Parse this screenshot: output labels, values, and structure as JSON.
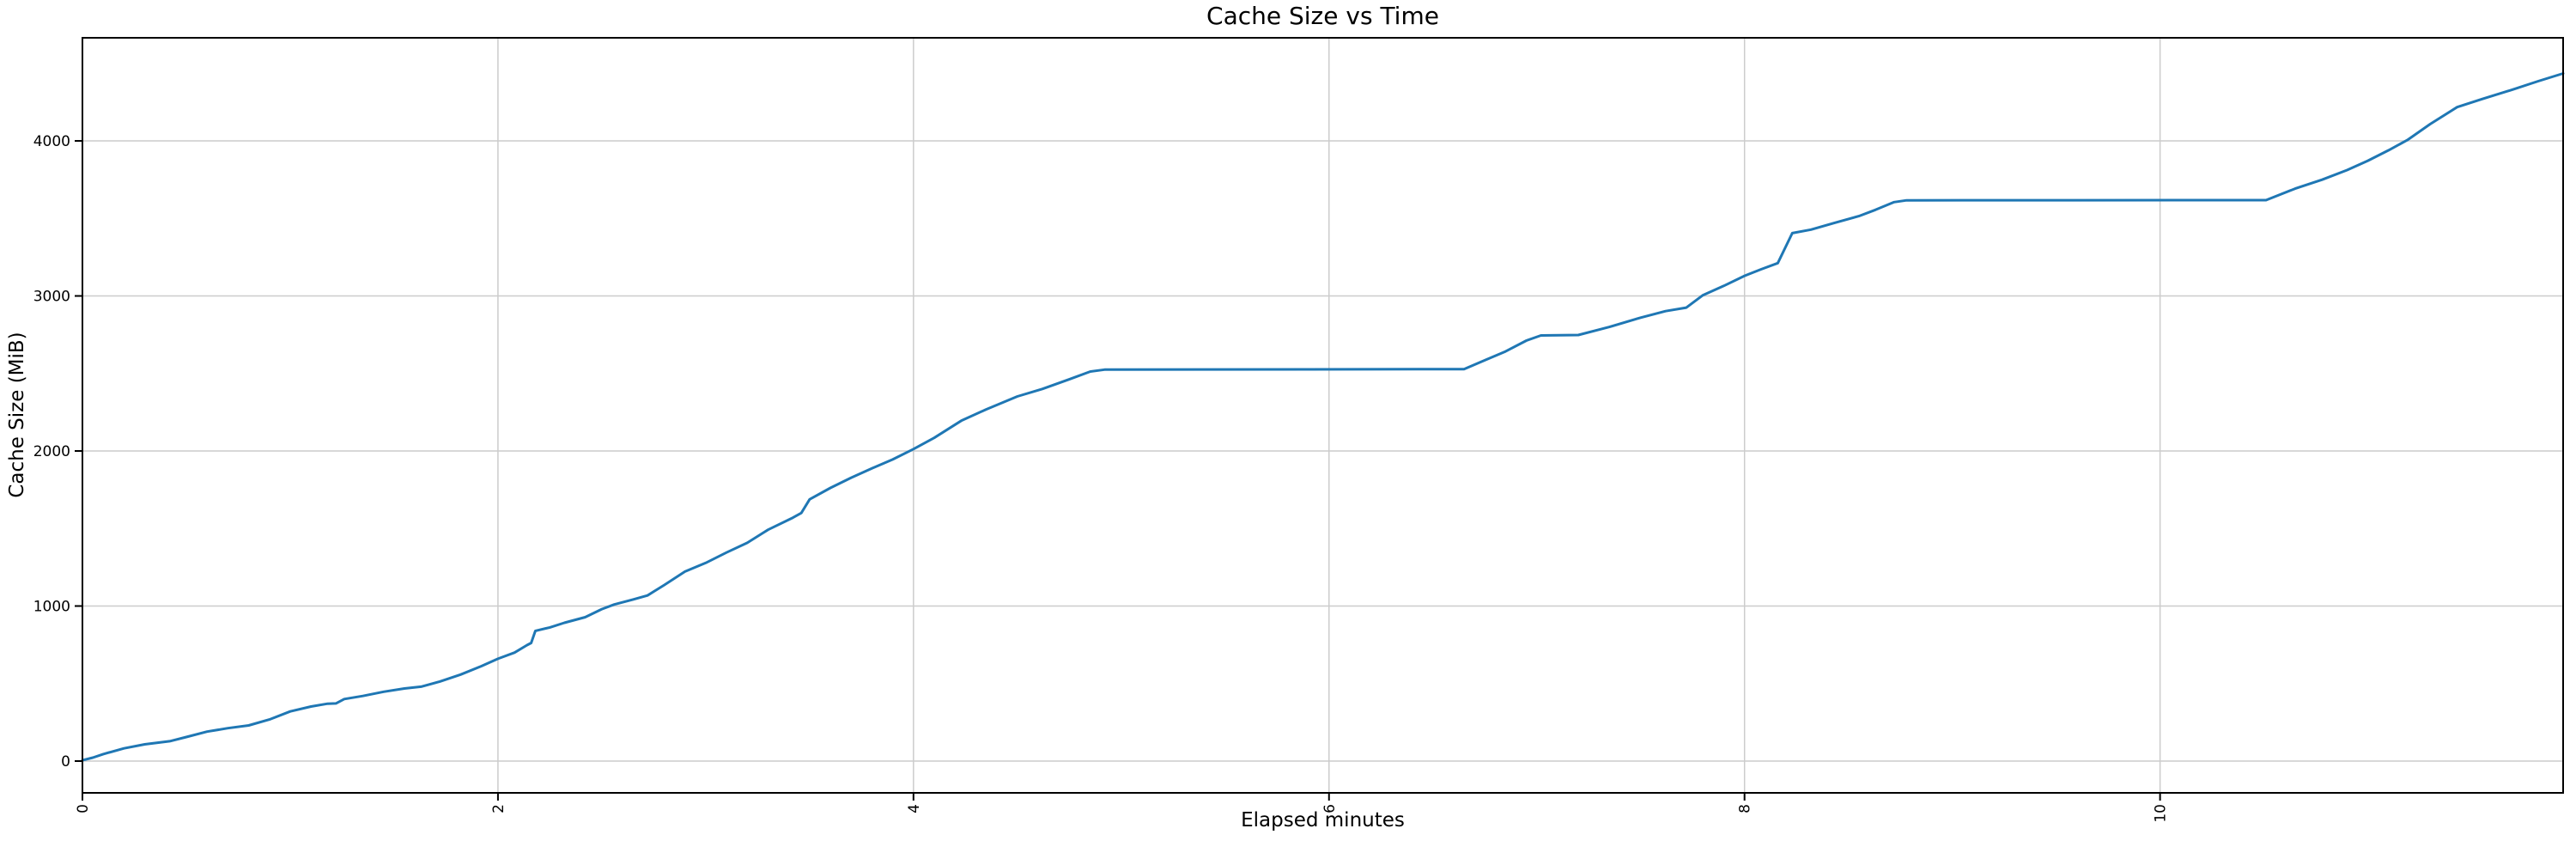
{
  "figure": {
    "title": "Cache Size vs Time",
    "xlabel": "Elapsed minutes",
    "ylabel": "Cache Size (MiB)"
  },
  "chart_data": {
    "type": "line",
    "title": "Cache Size vs Time",
    "xlabel": "Elapsed minutes",
    "ylabel": "Cache Size (MiB)",
    "xlim": [
      0,
      11.94
    ],
    "ylim": [
      -205,
      4665
    ],
    "x_ticks": [
      0,
      2,
      4,
      6,
      8,
      10
    ],
    "y_ticks": [
      0,
      1000,
      2000,
      3000,
      4000
    ],
    "x_tick_rotation_deg": 90,
    "grid": true,
    "legend": false,
    "line_color": "#1f77b4",
    "grid_color": "#cccccc",
    "spine_color": "#000000",
    "series": [
      {
        "name": "cache_size_mib",
        "points": [
          [
            0.0,
            5
          ],
          [
            0.05,
            22
          ],
          [
            0.1,
            45
          ],
          [
            0.2,
            82
          ],
          [
            0.3,
            108
          ],
          [
            0.42,
            128
          ],
          [
            0.5,
            155
          ],
          [
            0.6,
            190
          ],
          [
            0.7,
            212
          ],
          [
            0.8,
            230
          ],
          [
            0.9,
            268
          ],
          [
            1.0,
            320
          ],
          [
            1.1,
            352
          ],
          [
            1.18,
            370
          ],
          [
            1.22,
            372
          ],
          [
            1.26,
            400
          ],
          [
            1.35,
            420
          ],
          [
            1.45,
            447
          ],
          [
            1.55,
            468
          ],
          [
            1.63,
            480
          ],
          [
            1.72,
            513
          ],
          [
            1.82,
            558
          ],
          [
            1.92,
            612
          ],
          [
            2.0,
            660
          ],
          [
            2.08,
            700
          ],
          [
            2.14,
            748
          ],
          [
            2.16,
            762
          ],
          [
            2.18,
            840
          ],
          [
            2.25,
            862
          ],
          [
            2.32,
            892
          ],
          [
            2.42,
            928
          ],
          [
            2.5,
            980
          ],
          [
            2.56,
            1010
          ],
          [
            2.65,
            1042
          ],
          [
            2.72,
            1068
          ],
          [
            2.8,
            1135
          ],
          [
            2.9,
            1222
          ],
          [
            3.0,
            1278
          ],
          [
            3.1,
            1345
          ],
          [
            3.2,
            1408
          ],
          [
            3.3,
            1492
          ],
          [
            3.42,
            1570
          ],
          [
            3.46,
            1600
          ],
          [
            3.5,
            1688
          ],
          [
            3.6,
            1762
          ],
          [
            3.7,
            1828
          ],
          [
            3.8,
            1888
          ],
          [
            3.9,
            1945
          ],
          [
            4.0,
            2012
          ],
          [
            4.1,
            2085
          ],
          [
            4.23,
            2195
          ],
          [
            4.35,
            2268
          ],
          [
            4.5,
            2352
          ],
          [
            4.62,
            2400
          ],
          [
            4.75,
            2462
          ],
          [
            4.85,
            2512
          ],
          [
            4.92,
            2525
          ],
          [
            6.65,
            2528
          ],
          [
            6.75,
            2585
          ],
          [
            6.85,
            2642
          ],
          [
            6.95,
            2712
          ],
          [
            7.02,
            2745
          ],
          [
            7.2,
            2748
          ],
          [
            7.35,
            2800
          ],
          [
            7.5,
            2860
          ],
          [
            7.62,
            2902
          ],
          [
            7.72,
            2925
          ],
          [
            7.8,
            3005
          ],
          [
            7.9,
            3065
          ],
          [
            8.0,
            3130
          ],
          [
            8.08,
            3172
          ],
          [
            8.16,
            3212
          ],
          [
            8.23,
            3405
          ],
          [
            8.32,
            3428
          ],
          [
            8.43,
            3470
          ],
          [
            8.55,
            3515
          ],
          [
            8.63,
            3555
          ],
          [
            8.72,
            3605
          ],
          [
            8.78,
            3617
          ],
          [
            10.51,
            3618
          ],
          [
            10.65,
            3692
          ],
          [
            10.78,
            3750
          ],
          [
            10.9,
            3812
          ],
          [
            11.0,
            3872
          ],
          [
            11.1,
            3940
          ],
          [
            11.19,
            4005
          ],
          [
            11.3,
            4108
          ],
          [
            11.43,
            4218
          ],
          [
            11.55,
            4270
          ],
          [
            11.7,
            4332
          ],
          [
            11.82,
            4385
          ],
          [
            11.94,
            4435
          ]
        ]
      }
    ]
  }
}
